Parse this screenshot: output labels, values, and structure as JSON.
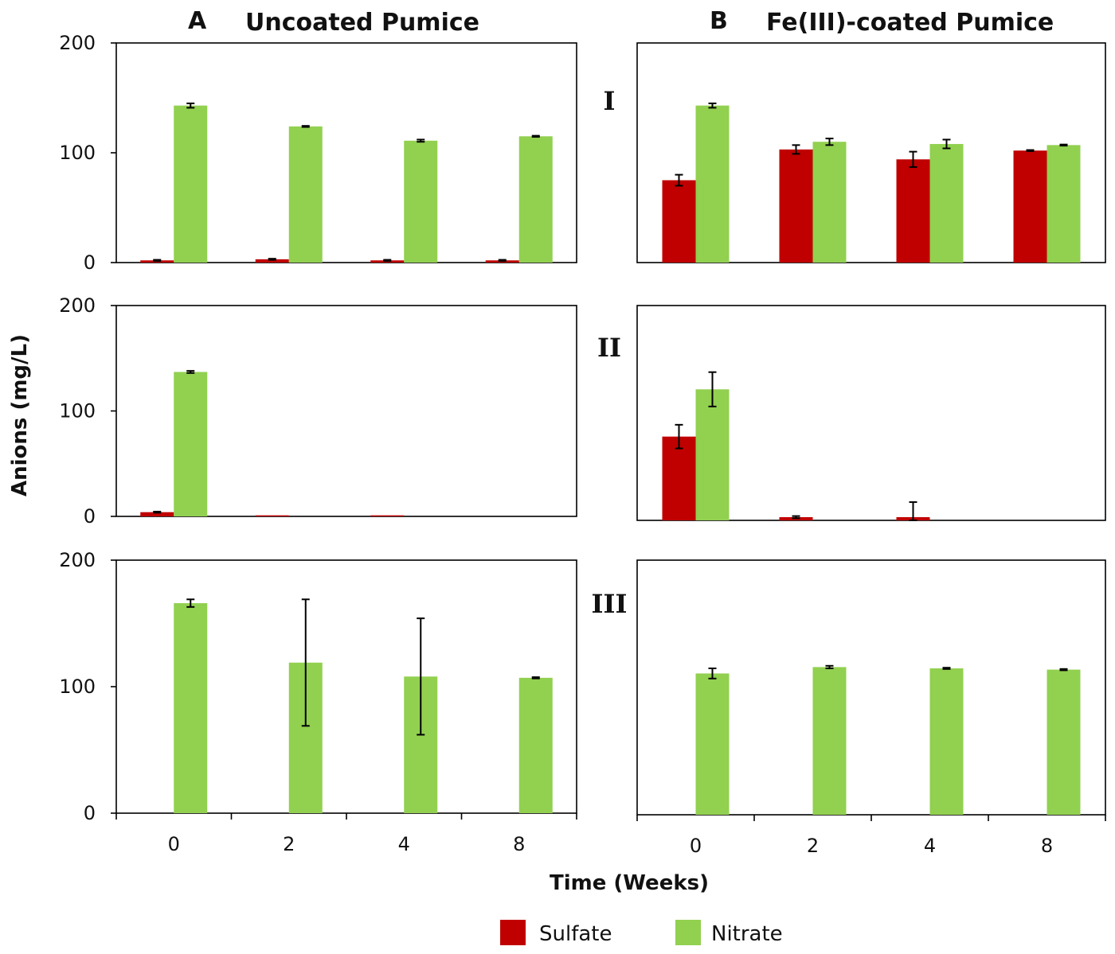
{
  "colors": {
    "sulfate": "#c00000",
    "nitrate": "#92d050"
  },
  "header": {
    "left_letter": "A",
    "left_title": "Uncoated Pumice",
    "right_letter": "B",
    "right_title": "Fe(III)-coated Pumice"
  },
  "row_labels": [
    "I",
    "II",
    "III"
  ],
  "y_axis_title": "Anions (mg/L)",
  "x_axis_title": "Time (Weeks)",
  "legend": [
    {
      "label": "Sulfate",
      "color": "#c00000"
    },
    {
      "label": "Nitrate",
      "color": "#92d050"
    }
  ],
  "chart_data": [
    {
      "type": "bar",
      "panel": "A",
      "row": "I",
      "categories": [
        "0",
        "2",
        "4",
        "8"
      ],
      "ylim": [
        0,
        200
      ],
      "yticks": [
        "0",
        "100",
        "200"
      ],
      "series": [
        {
          "name": "Sulfate",
          "values": [
            2,
            3,
            2,
            2
          ],
          "errors": [
            0.5,
            0.5,
            0.5,
            0.5
          ]
        },
        {
          "name": "Nitrate",
          "values": [
            143,
            124,
            111,
            115
          ],
          "errors": [
            2,
            0.5,
            1,
            0.5
          ]
        }
      ]
    },
    {
      "type": "bar",
      "panel": "B",
      "row": "I",
      "categories": [
        "0",
        "2",
        "4",
        "8"
      ],
      "ylim": [
        0,
        200
      ],
      "yticks": [],
      "series": [
        {
          "name": "Sulfate",
          "values": [
            75,
            103,
            94,
            102
          ],
          "errors": [
            5,
            4,
            7,
            0.5
          ]
        },
        {
          "name": "Nitrate",
          "values": [
            143,
            110,
            108,
            107
          ],
          "errors": [
            2,
            3,
            4,
            0.5
          ]
        }
      ]
    },
    {
      "type": "bar",
      "panel": "A",
      "row": "II",
      "categories": [
        "0",
        "2",
        "4",
        "8"
      ],
      "ylim": [
        0,
        200
      ],
      "yticks": [
        "0",
        "100",
        "200"
      ],
      "series": [
        {
          "name": "Sulfate",
          "values": [
            4,
            1,
            1,
            0
          ],
          "errors": [
            0.5,
            0,
            0,
            0
          ]
        },
        {
          "name": "Nitrate",
          "values": [
            137,
            0,
            0,
            0
          ],
          "errors": [
            1,
            0,
            0,
            0
          ]
        }
      ]
    },
    {
      "type": "bar",
      "panel": "B",
      "row": "II",
      "categories": [
        "0",
        "2",
        "4",
        "8"
      ],
      "ylim": [
        0,
        200
      ],
      "yticks": [],
      "series": [
        {
          "name": "Sulfate",
          "values": [
            78,
            3,
            3,
            0
          ],
          "errors": [
            11,
            1,
            14,
            0
          ]
        },
        {
          "name": "Nitrate",
          "values": [
            122,
            0,
            0,
            0
          ],
          "errors": [
            16,
            0,
            0,
            0
          ]
        }
      ]
    },
    {
      "type": "bar",
      "panel": "A",
      "row": "III",
      "categories": [
        "0",
        "2",
        "4",
        "8"
      ],
      "ylim": [
        0,
        200
      ],
      "yticks": [
        "0",
        "100",
        "200"
      ],
      "series": [
        {
          "name": "Sulfate",
          "values": [
            0,
            0,
            0,
            0
          ],
          "errors": [
            0,
            0,
            0,
            0
          ]
        },
        {
          "name": "Nitrate",
          "values": [
            166,
            119,
            108,
            107
          ],
          "errors": [
            3,
            50,
            46,
            0.5
          ]
        }
      ]
    },
    {
      "type": "bar",
      "panel": "B",
      "row": "III",
      "categories": [
        "0",
        "2",
        "4",
        "8"
      ],
      "ylim": [
        0,
        200
      ],
      "yticks": [],
      "series": [
        {
          "name": "Sulfate",
          "values": [
            0,
            0,
            0,
            0
          ],
          "errors": [
            0,
            0,
            0,
            0
          ]
        },
        {
          "name": "Nitrate",
          "values": [
            111,
            116,
            115,
            114
          ],
          "errors": [
            4,
            1,
            0.5,
            0.5
          ]
        }
      ]
    }
  ]
}
